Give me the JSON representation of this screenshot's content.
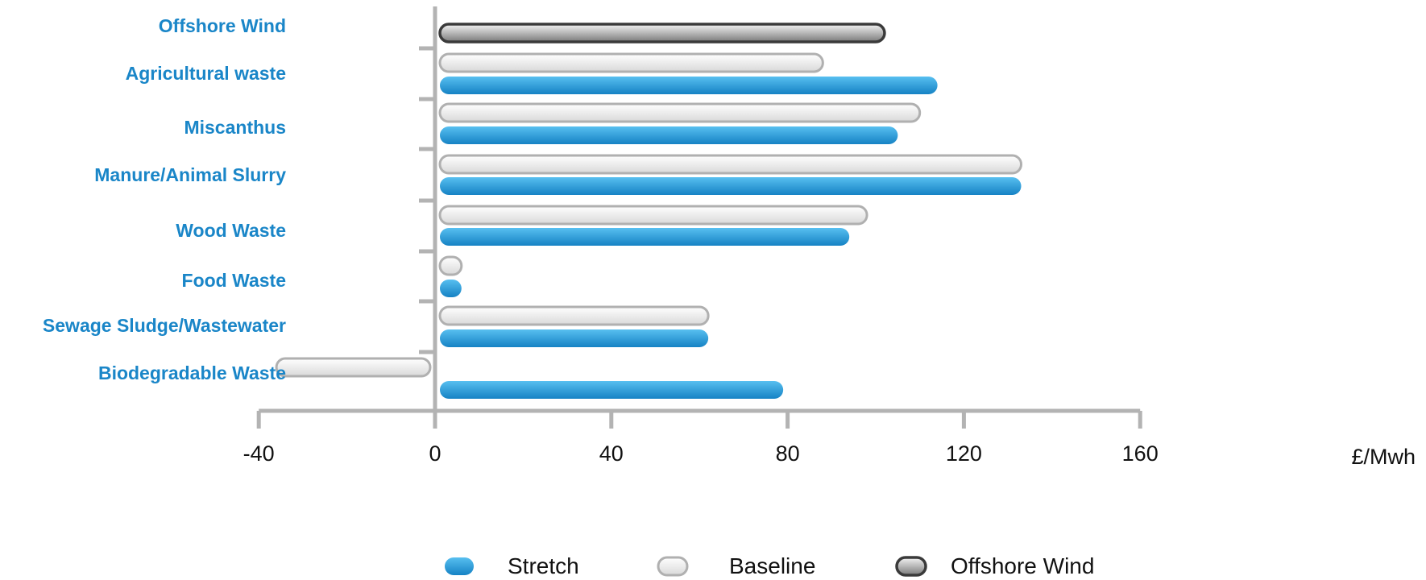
{
  "chart_data": {
    "type": "bar",
    "orientation": "horizontal",
    "unit": "£/Mwh",
    "xlim": [
      -40,
      160
    ],
    "xticks": [
      -40,
      0,
      40,
      80,
      120,
      160
    ],
    "categories": [
      "Offshore Wind",
      "Agricultural waste",
      "Miscanthus",
      "Manure/Animal Slurry",
      "Wood Waste",
      "Food Waste",
      "Sewage Sludge/Wastewater",
      "Biodegradable Waste"
    ],
    "series": [
      {
        "name": "Offshore Wind",
        "style": "dark",
        "values": [
          102,
          null,
          null,
          null,
          null,
          null,
          null,
          null
        ]
      },
      {
        "name": "Baseline",
        "style": "light",
        "values": [
          null,
          88,
          110,
          133,
          98,
          6,
          62,
          -36
        ]
      },
      {
        "name": "Stretch",
        "style": "blue",
        "values": [
          null,
          114,
          105,
          133,
          94,
          6,
          62,
          79
        ]
      }
    ],
    "legend": [
      "Stretch",
      "Baseline",
      "Offshore Wind"
    ],
    "legend_position": "bottom",
    "grid": false
  },
  "colors": {
    "label": "#1a86c8",
    "axis": "#b3b3b3",
    "blue_top": "#57bff0",
    "blue_bottom": "#1582c4",
    "light_top": "#ffffff",
    "light_bottom": "#d9d9d9",
    "light_stroke": "#b0b0b0",
    "dark_top": "#f4f4f4",
    "dark_bottom": "#7a7a7a",
    "dark_stroke": "#3a3a3a"
  }
}
